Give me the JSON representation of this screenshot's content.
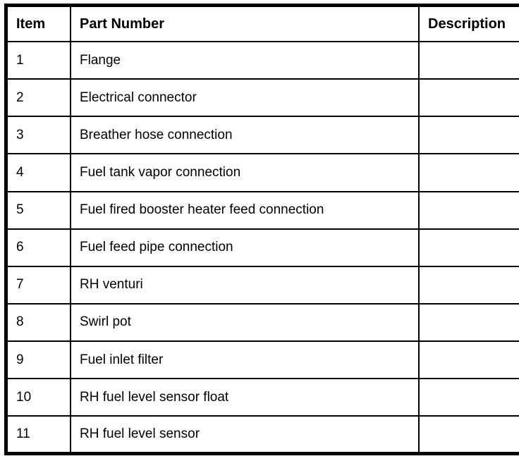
{
  "table": {
    "headers": {
      "item": "Item",
      "part_number": "Part Number",
      "description": "Description"
    },
    "rows": [
      {
        "item": "1",
        "part_number": "Flange",
        "description": ""
      },
      {
        "item": "2",
        "part_number": "Electrical connector",
        "description": ""
      },
      {
        "item": "3",
        "part_number": "Breather hose connection",
        "description": ""
      },
      {
        "item": "4",
        "part_number": "Fuel tank vapor connection",
        "description": ""
      },
      {
        "item": "5",
        "part_number": "Fuel fired booster heater feed connection",
        "description": ""
      },
      {
        "item": "6",
        "part_number": "Fuel feed pipe connection",
        "description": ""
      },
      {
        "item": "7",
        "part_number": "RH venturi",
        "description": ""
      },
      {
        "item": "8",
        "part_number": "Swirl pot",
        "description": ""
      },
      {
        "item": "9",
        "part_number": "Fuel inlet filter",
        "description": ""
      },
      {
        "item": "10",
        "part_number": "RH fuel level sensor float",
        "description": ""
      },
      {
        "item": "11",
        "part_number": "RH fuel level sensor",
        "description": ""
      }
    ],
    "colors": {
      "border": "#000000",
      "background": "#ffffff",
      "text": "#000000"
    }
  }
}
